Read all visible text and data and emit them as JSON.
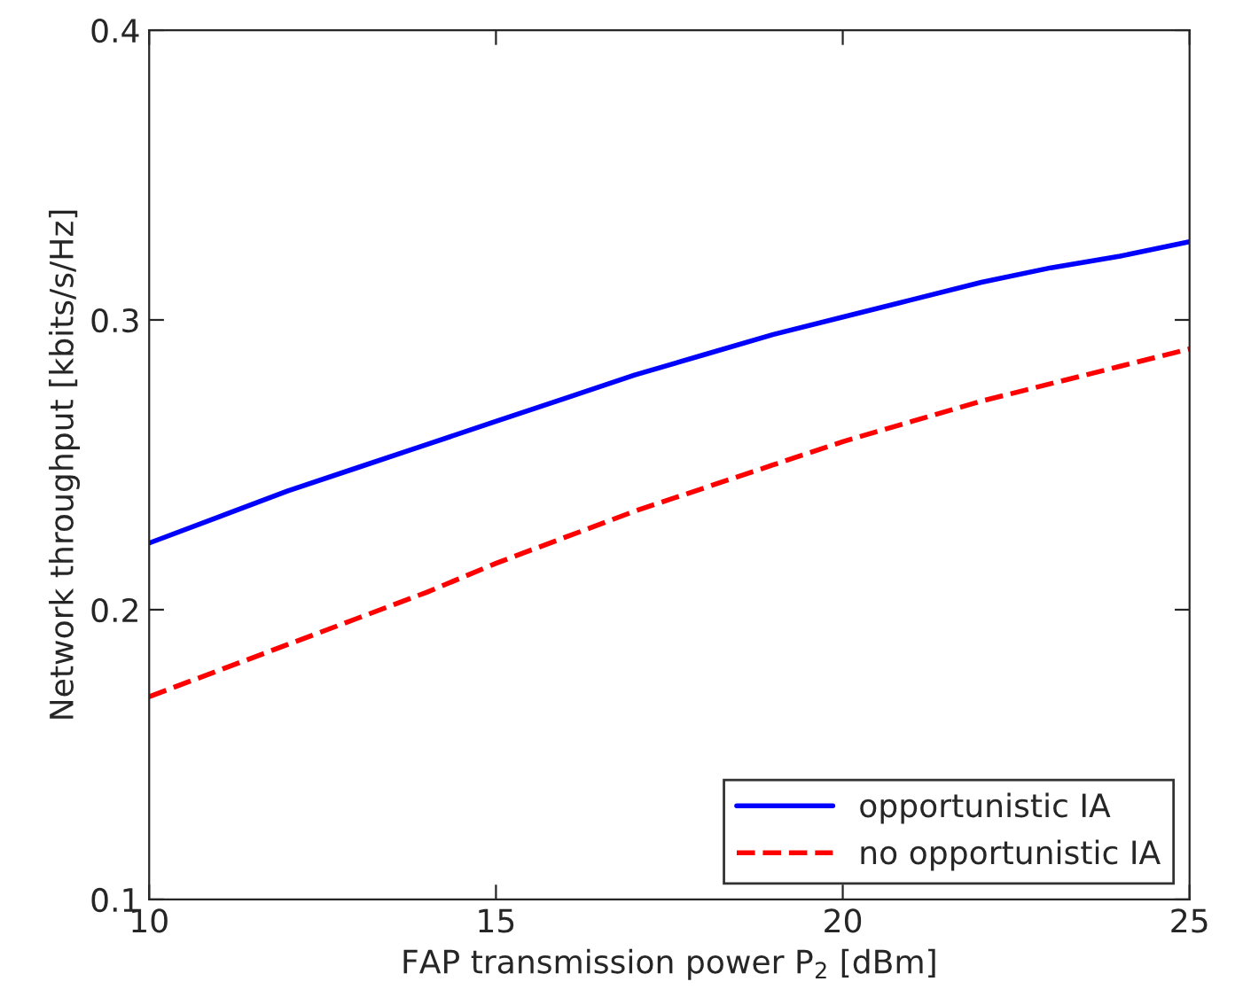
{
  "chart_data": {
    "type": "line",
    "xlabel": "FAP transmission power P$_{2}$ [dBm]",
    "ylabel": "Network throughput [kbits/s/Hz]",
    "x": [
      10,
      11,
      12,
      13,
      14,
      15,
      16,
      17,
      18,
      19,
      20,
      21,
      22,
      23,
      24,
      25
    ],
    "series": [
      {
        "name": "opportunistic IA",
        "color": "#0000ff",
        "line_style": "solid",
        "values": [
          0.223,
          0.232,
          0.241,
          0.249,
          0.257,
          0.265,
          0.273,
          0.281,
          0.288,
          0.295,
          0.301,
          0.307,
          0.313,
          0.318,
          0.322,
          0.327
        ]
      },
      {
        "name": "no opportunistic IA",
        "color": "#ff0000",
        "line_style": "dashed",
        "values": [
          0.17,
          0.179,
          0.188,
          0.197,
          0.206,
          0.216,
          0.225,
          0.234,
          0.242,
          0.25,
          0.258,
          0.265,
          0.272,
          0.278,
          0.284,
          0.29
        ]
      }
    ],
    "xlim": [
      10,
      25
    ],
    "ylim": [
      0.1,
      0.4
    ],
    "xticks": [
      10,
      15,
      20,
      25
    ],
    "yticks": [
      0.1,
      0.2,
      0.3,
      0.4
    ],
    "legend": "bottom right",
    "grid": false,
    "marker": "none"
  }
}
